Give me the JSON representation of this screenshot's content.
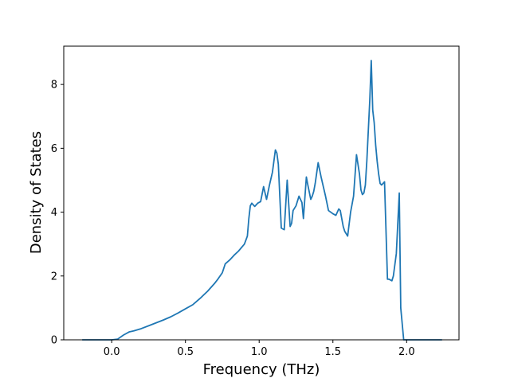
{
  "chart_data": {
    "type": "line",
    "title": "",
    "xlabel": "Frequency (THz)",
    "ylabel": "Density of States",
    "xlim": [
      -0.325,
      2.355
    ],
    "ylim": [
      0,
      9.2
    ],
    "grid": false,
    "line_color": "#1f77b4",
    "x_ticks": [
      {
        "value": 0.0,
        "label": "0.0"
      },
      {
        "value": 0.5,
        "label": "0.5"
      },
      {
        "value": 1.0,
        "label": "1.0"
      },
      {
        "value": 1.5,
        "label": "1.5"
      },
      {
        "value": 2.0,
        "label": "2.0"
      }
    ],
    "y_ticks": [
      {
        "value": 0,
        "label": "0"
      },
      {
        "value": 2,
        "label": "2"
      },
      {
        "value": 4,
        "label": "4"
      },
      {
        "value": 6,
        "label": "6"
      },
      {
        "value": 8,
        "label": "8"
      }
    ],
    "series": [
      {
        "name": "",
        "x": [
          -0.2,
          -0.1,
          0.0,
          0.04,
          0.08,
          0.12,
          0.15,
          0.2,
          0.25,
          0.3,
          0.35,
          0.4,
          0.45,
          0.5,
          0.55,
          0.6,
          0.65,
          0.7,
          0.72,
          0.75,
          0.77,
          0.8,
          0.83,
          0.86,
          0.9,
          0.92,
          0.93,
          0.94,
          0.95,
          0.97,
          0.99,
          1.01,
          1.03,
          1.05,
          1.07,
          1.09,
          1.11,
          1.12,
          1.13,
          1.14,
          1.15,
          1.17,
          1.19,
          1.21,
          1.22,
          1.23,
          1.25,
          1.27,
          1.29,
          1.3,
          1.32,
          1.33,
          1.35,
          1.36,
          1.37,
          1.38,
          1.4,
          1.42,
          1.44,
          1.45,
          1.47,
          1.5,
          1.52,
          1.54,
          1.55,
          1.57,
          1.58,
          1.6,
          1.62,
          1.64,
          1.66,
          1.68,
          1.69,
          1.7,
          1.71,
          1.72,
          1.73,
          1.75,
          1.76,
          1.77,
          1.78,
          1.79,
          1.8,
          1.81,
          1.82,
          1.83,
          1.85,
          1.87,
          1.88,
          1.9,
          1.91,
          1.92,
          1.93,
          1.95,
          1.96,
          1.98,
          2.0,
          2.01,
          2.02,
          2.03,
          2.04,
          2.05,
          2.1,
          2.15,
          2.2,
          2.24
        ],
        "y": [
          0,
          0,
          0,
          0.02,
          0.15,
          0.25,
          0.28,
          0.35,
          0.44,
          0.53,
          0.62,
          0.72,
          0.84,
          0.97,
          1.1,
          1.3,
          1.52,
          1.78,
          1.9,
          2.1,
          2.38,
          2.5,
          2.65,
          2.78,
          3.0,
          3.25,
          3.8,
          4.2,
          4.28,
          4.18,
          4.28,
          4.33,
          4.8,
          4.4,
          4.85,
          5.25,
          5.95,
          5.85,
          5.5,
          4.5,
          3.5,
          3.45,
          5.0,
          3.55,
          3.65,
          4.05,
          4.2,
          4.5,
          4.3,
          3.8,
          5.1,
          4.85,
          4.4,
          4.5,
          4.65,
          4.9,
          5.55,
          5.1,
          4.7,
          4.5,
          4.05,
          3.95,
          3.9,
          4.1,
          4.05,
          3.55,
          3.4,
          3.25,
          4.0,
          4.5,
          5.8,
          5.2,
          4.7,
          4.55,
          4.6,
          4.85,
          5.6,
          7.5,
          8.75,
          7.2,
          6.8,
          6.1,
          5.6,
          5.2,
          4.9,
          4.85,
          4.95,
          1.9,
          1.9,
          1.85,
          2.0,
          2.35,
          2.7,
          4.6,
          1.0,
          0.0,
          0.0,
          0.0,
          0.0,
          0.0,
          0.0,
          0.0,
          0.0,
          0.0,
          0.0,
          0.0
        ]
      }
    ]
  }
}
